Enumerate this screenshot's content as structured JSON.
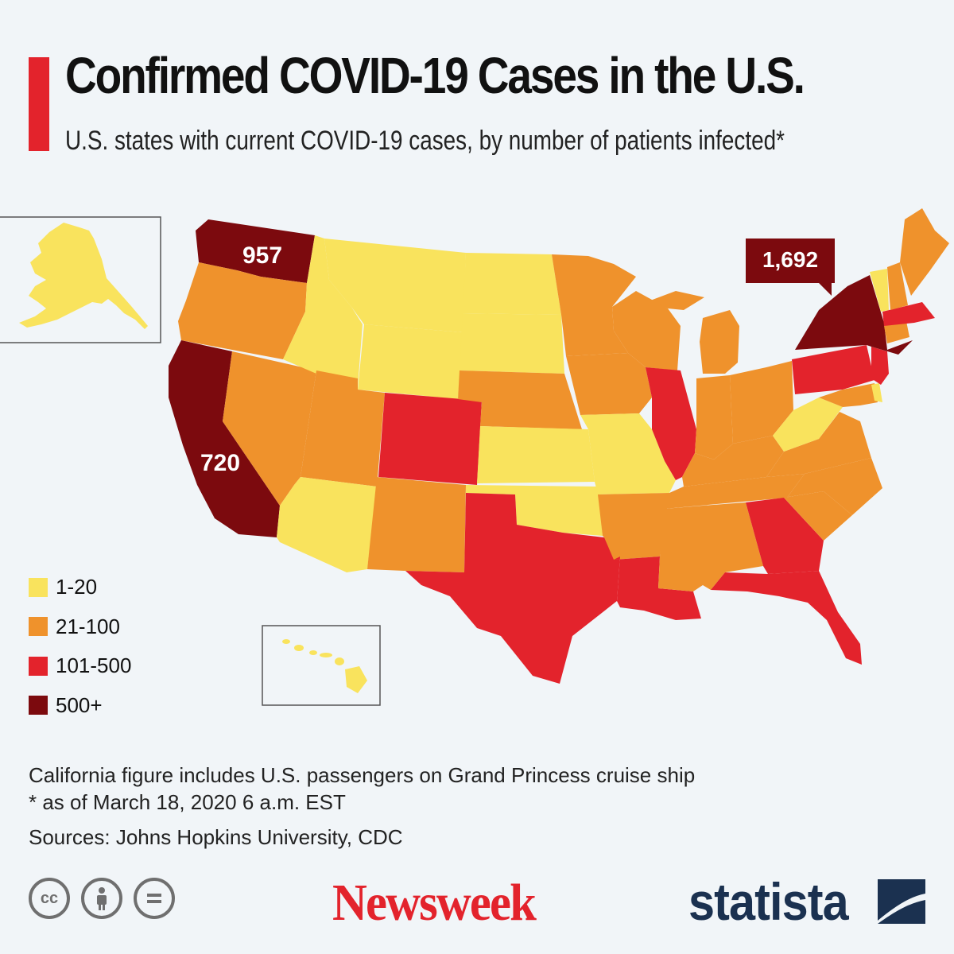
{
  "header": {
    "title": "Confirmed COVID-19 Cases in the U.S.",
    "subtitle": "U.S. states with current COVID-19 cases, by number of patients infected*"
  },
  "colors": {
    "accent": "#e3232c",
    "band_1_20": "#f9e35d",
    "band_21_100": "#ef922c",
    "band_101_500": "#e3232c",
    "band_500_plus": "#7c0a0e",
    "background": "#f1f5f8"
  },
  "legend": {
    "items": [
      {
        "label": "1-20",
        "color": "#f9e35d"
      },
      {
        "label": "21-100",
        "color": "#ef922c"
      },
      {
        "label": "101-500",
        "color": "#e3232c"
      },
      {
        "label": "500+",
        "color": "#7c0a0e"
      }
    ]
  },
  "map_labels": {
    "washington": "957",
    "california": "720",
    "new_york": "1,692"
  },
  "state_bands": {
    "Washington": "500+",
    "California": "500+",
    "New York": "500+",
    "Oregon": "21-100",
    "Nevada": "21-100",
    "Utah": "21-100",
    "New Mexico": "21-100",
    "Nebraska": "21-100",
    "Minnesota": "21-100",
    "Iowa": "21-100",
    "Wisconsin": "21-100",
    "Michigan": "21-100",
    "Indiana": "21-100",
    "Ohio": "21-100",
    "Kentucky": "21-100",
    "Tennessee": "21-100",
    "Arkansas": "21-100",
    "Mississippi": "21-100",
    "Alabama": "21-100",
    "Virginia": "21-100",
    "North Carolina": "21-100",
    "South Carolina": "21-100",
    "Maine": "21-100",
    "New Hampshire": "21-100",
    "Connecticut": "21-100",
    "Maryland": "21-100",
    "Colorado": "101-500",
    "Texas": "101-500",
    "Louisiana": "101-500",
    "Illinois": "101-500",
    "Georgia": "101-500",
    "Florida": "101-500",
    "Pennsylvania": "101-500",
    "New Jersey": "101-500",
    "Massachusetts": "101-500",
    "Idaho": "1-20",
    "Montana": "1-20",
    "Wyoming": "1-20",
    "North Dakota": "1-20",
    "South Dakota": "1-20",
    "Kansas": "1-20",
    "Oklahoma": "1-20",
    "Missouri": "1-20",
    "Arizona": "1-20",
    "West Virginia": "1-20",
    "Vermont": "1-20",
    "Delaware": "1-20",
    "Alaska": "1-20",
    "Hawaii": "1-20"
  },
  "footnotes": {
    "note": "California figure includes U.S. passengers on Grand Princess cruise ship",
    "asof": "* as of March 18, 2020 6 a.m. EST",
    "sources": "Sources: Johns Hopkins University, CDC"
  },
  "branding": {
    "newsweek": "Newsweek",
    "statista": "statista",
    "license_icons": [
      "cc-icon",
      "attribution-icon",
      "no-derivatives-icon"
    ]
  }
}
